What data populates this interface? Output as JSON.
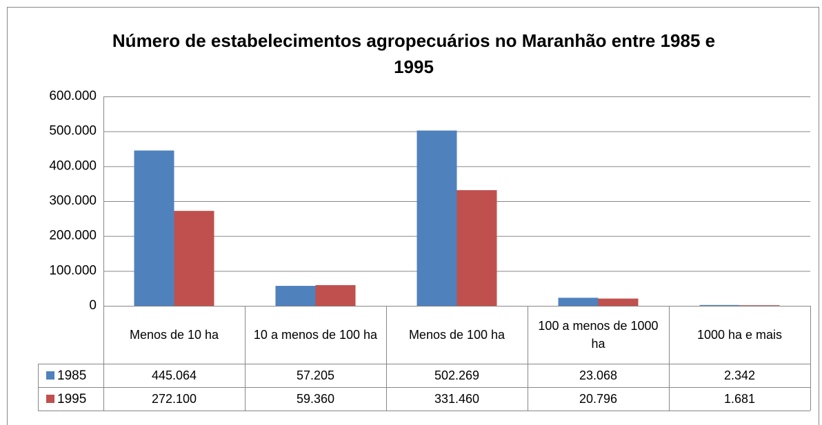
{
  "chart_data": {
    "type": "bar",
    "title": "Número de estabelecimentos agropecuários no Maranhão entre 1985 e 1995",
    "categories": [
      "Menos de 10 ha",
      "10 a menos de 100 ha",
      "Menos de 100 ha",
      "100 a menos de 1000 ha",
      "1000 ha e mais"
    ],
    "series": [
      {
        "name": "1985",
        "color": "#4f81bd",
        "values": [
          445064,
          57205,
          502269,
          23068,
          2342
        ],
        "value_labels": [
          "445.064",
          "57.205",
          "502.269",
          "23.068",
          "2.342"
        ]
      },
      {
        "name": "1995",
        "color": "#c0504d",
        "values": [
          272100,
          59360,
          331460,
          20796,
          1681
        ],
        "value_labels": [
          "272.100",
          "59.360",
          "331.460",
          "20.796",
          "1.681"
        ]
      }
    ],
    "ylim": [
      0,
      600000
    ],
    "yticks": [
      0,
      {
        "value": 100000,
        "label": "100.000"
      },
      {
        "value": 200000,
        "label": "200.000"
      },
      {
        "value": 300000,
        "label": "300.000"
      },
      {
        "value": 400000,
        "label": "400.000"
      },
      {
        "value": 500000,
        "label": "500.000"
      },
      {
        "value": 600000,
        "label": "600.000"
      }
    ],
    "grid": true,
    "data_table": true
  }
}
